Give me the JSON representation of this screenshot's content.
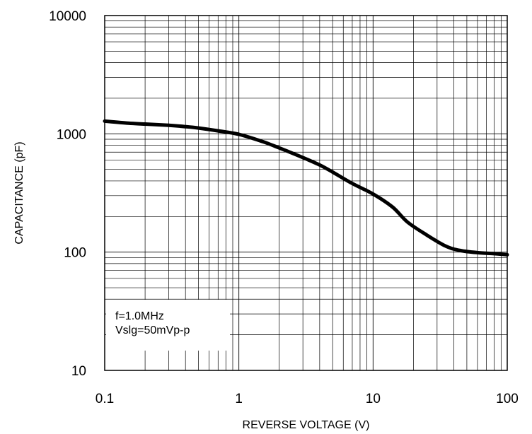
{
  "chart_data": {
    "type": "line",
    "title": "",
    "xlabel": "REVERSE VOLTAGE (V)",
    "ylabel": "CAPACITANCE (pF)",
    "xscale": "log",
    "yscale": "log",
    "xlim": [
      0.1,
      100
    ],
    "ylim": [
      10,
      10000
    ],
    "grid": true,
    "x_ticks": [
      "0.1",
      "1",
      "10",
      "100"
    ],
    "y_ticks": [
      "10",
      "100",
      "1000",
      "10000"
    ],
    "annotation": [
      "f=1.0MHz",
      "Vslg=50mVp-p"
    ],
    "series": [
      {
        "x": [
          0.1,
          0.15,
          0.2,
          0.3,
          0.4,
          0.5,
          0.7,
          1.0,
          1.5,
          2,
          3,
          4,
          5,
          7,
          10,
          14,
          18,
          25,
          35,
          45,
          60,
          80,
          100
        ],
        "y": [
          1280,
          1230,
          1210,
          1180,
          1150,
          1120,
          1060,
          990,
          860,
          760,
          630,
          545,
          475,
          380,
          310,
          240,
          180,
          140,
          112,
          103,
          99,
          97,
          95
        ]
      }
    ],
    "line_color": "#000000"
  }
}
